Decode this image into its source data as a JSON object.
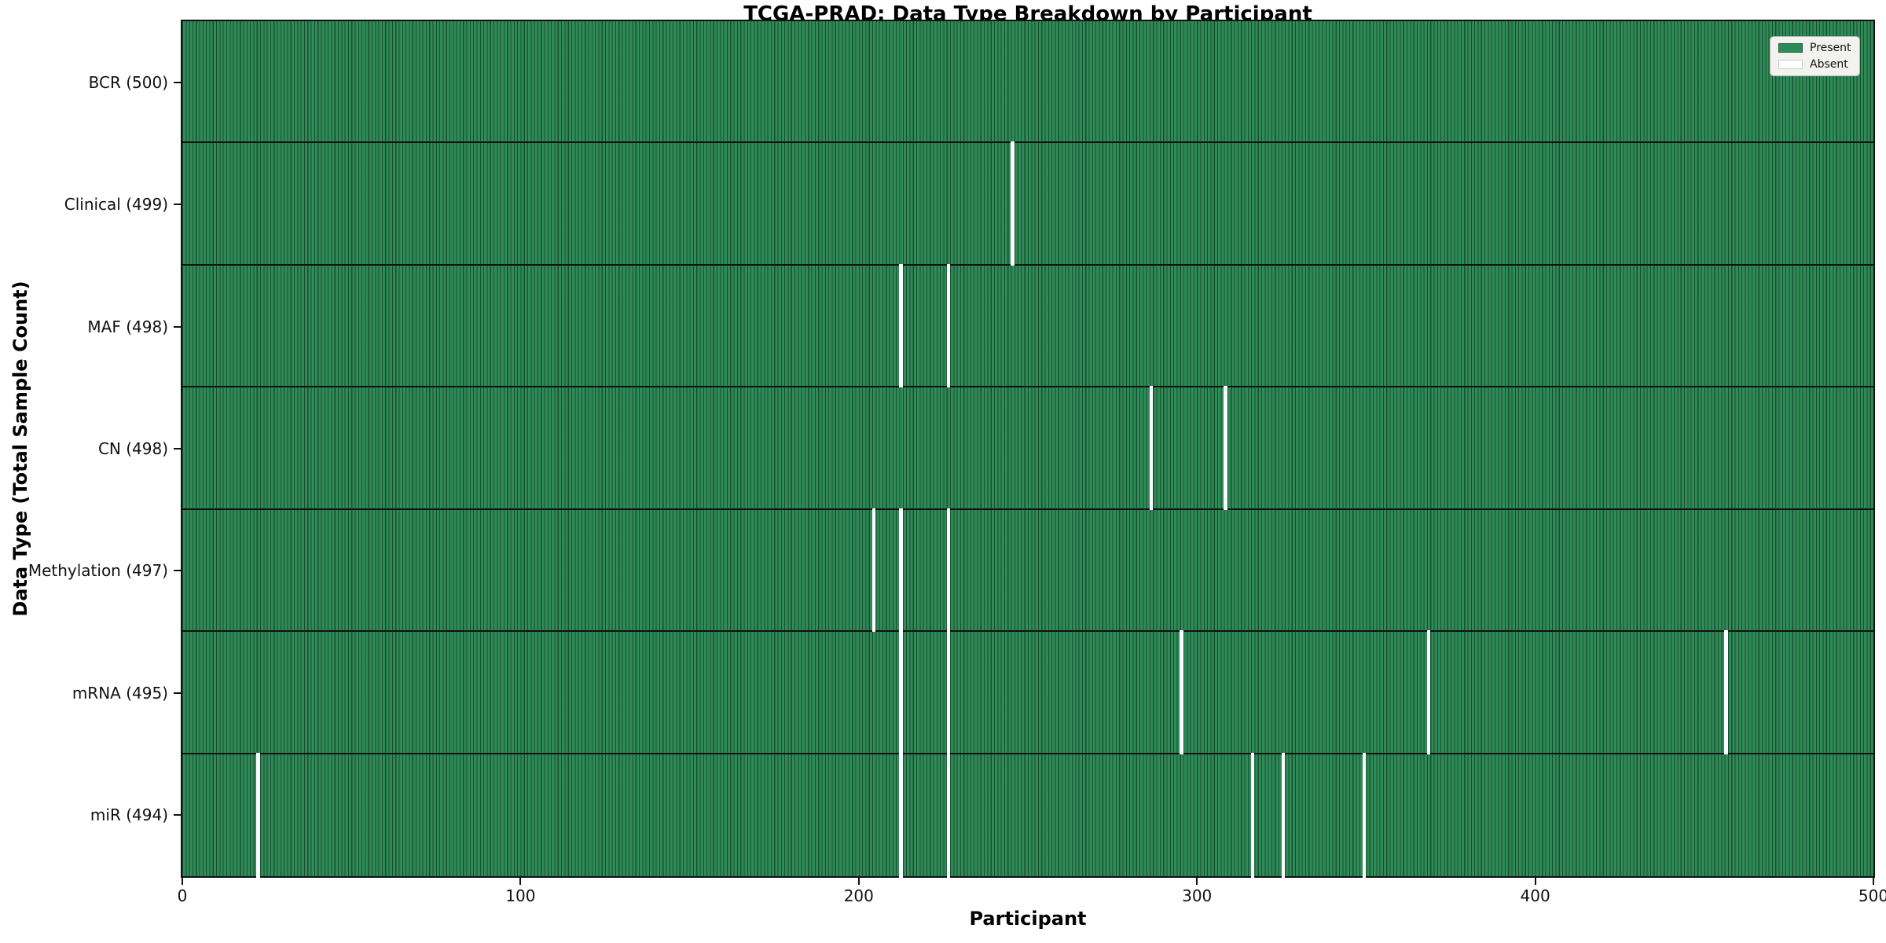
{
  "chart_data": {
    "type": "heatmap",
    "title": "TCGA-PRAD: Data Type Breakdown by Participant",
    "xlabel": "Participant",
    "ylabel": "Data Type (Total Sample Count)",
    "xlim": [
      0,
      500
    ],
    "x_ticks": [
      0,
      100,
      200,
      300,
      400,
      500
    ],
    "n_participants": 500,
    "grid": false,
    "legend": {
      "position": "upper right",
      "entries": [
        {
          "label": "Present",
          "color": "#2e8b57"
        },
        {
          "label": "Absent",
          "color": "#ffffff"
        }
      ]
    },
    "rows": [
      {
        "label": "BCR (500)",
        "data_type": "BCR",
        "total": 500,
        "absent_participants": []
      },
      {
        "label": "Clinical (499)",
        "data_type": "Clinical",
        "total": 499,
        "absent_participants": [
          245
        ]
      },
      {
        "label": "MAF (498)",
        "data_type": "MAF",
        "total": 498,
        "absent_participants": [
          212,
          226
        ]
      },
      {
        "label": "CN (498)",
        "data_type": "CN",
        "total": 498,
        "absent_participants": [
          286,
          308
        ]
      },
      {
        "label": "Methylation (497)",
        "data_type": "Methylation",
        "total": 497,
        "absent_participants": [
          204,
          212,
          226
        ]
      },
      {
        "label": "mRNA (495)",
        "data_type": "mRNA",
        "total": 495,
        "absent_participants": [
          212,
          226,
          295,
          368,
          456
        ]
      },
      {
        "label": "miR (494)",
        "data_type": "miR",
        "total": 494,
        "absent_participants": [
          22,
          212,
          226,
          316,
          325,
          349
        ]
      }
    ],
    "colors": {
      "present": "#2e8b57",
      "absent": "#ffffff",
      "bar_edge": "#1e5c3a",
      "row_divider": "#101010"
    }
  }
}
